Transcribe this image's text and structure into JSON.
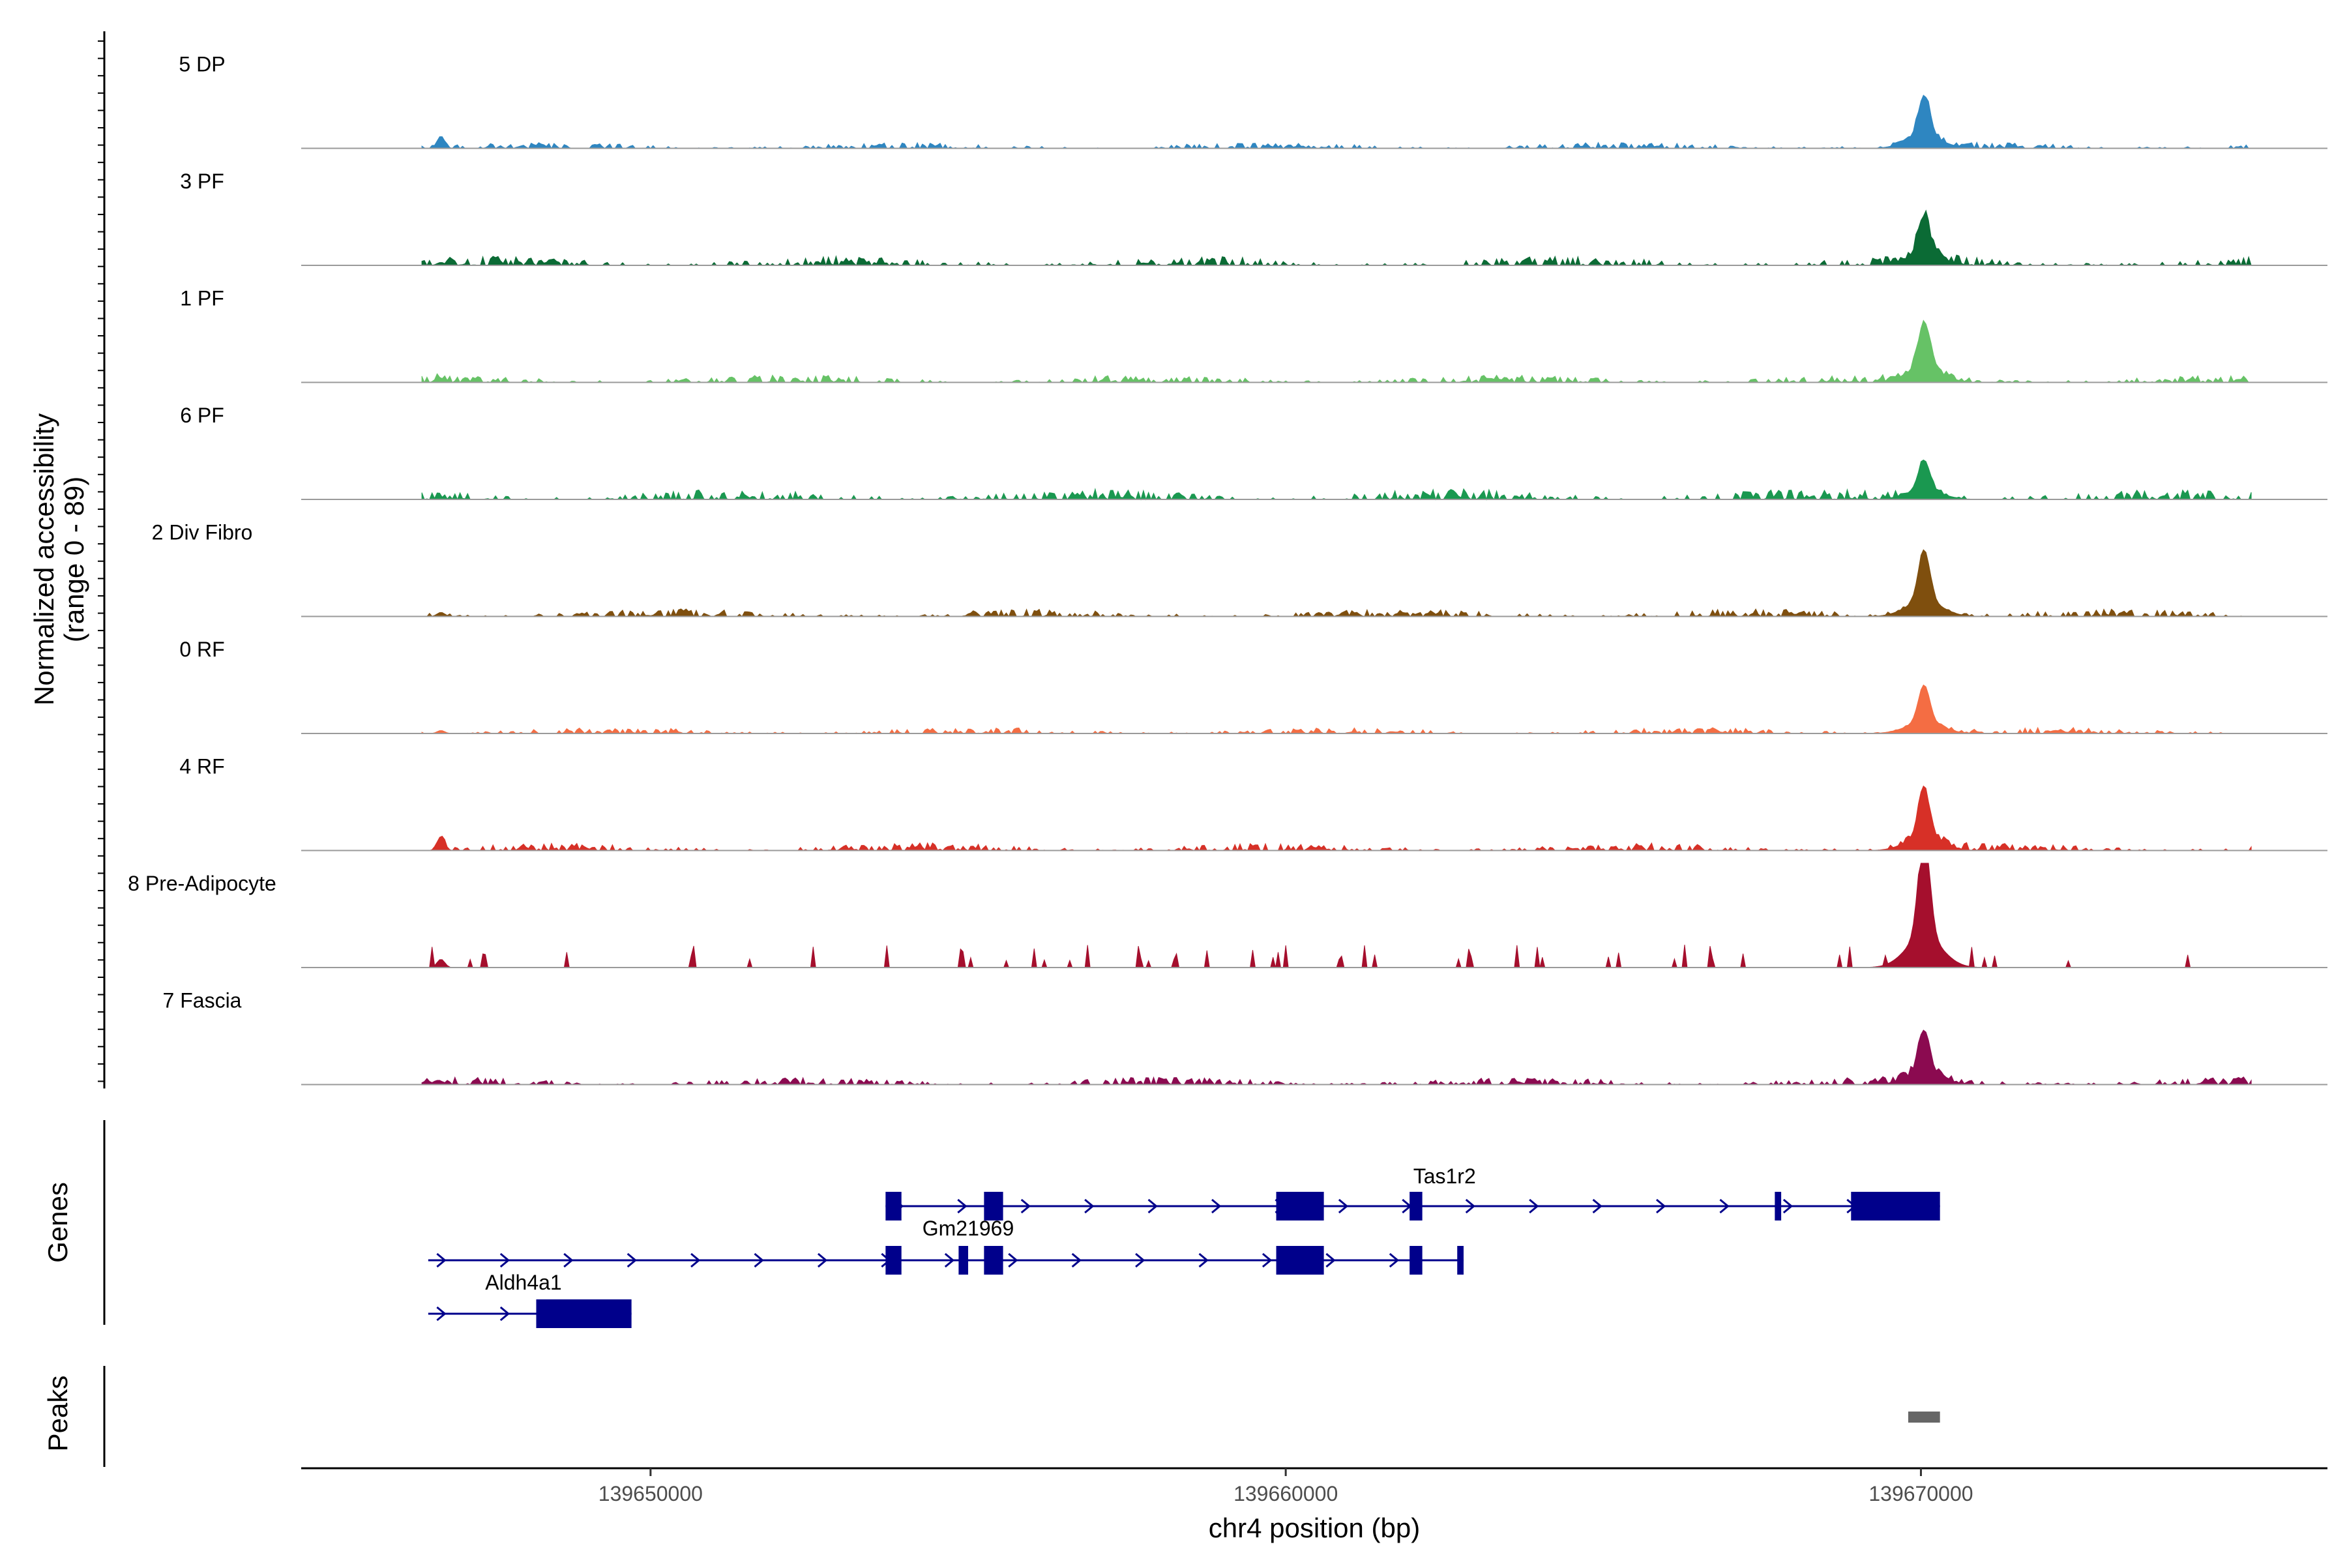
{
  "chart_data": {
    "type": "area",
    "title": "",
    "y_axis_title_line1": "Normalized accessibility",
    "y_axis_title_line2": "(range 0 - 89)",
    "ylim": [
      0,
      89
    ],
    "x_axis_title": "chr4 position (bp)",
    "xlim": [
      139644500,
      139676400
    ],
    "x_ticks": [
      139650000,
      139660000,
      139670000
    ],
    "x_tick_labels": [
      "139650000",
      "139660000",
      "139670000"
    ],
    "peak_center": 139670050,
    "tracks": [
      {
        "name": "5 DP",
        "color": "#2E86C1",
        "peak": 35,
        "noise": 4
      },
      {
        "name": "3 PF",
        "color": "#0B6B35",
        "peak": 32,
        "noise": 6
      },
      {
        "name": "1 PF",
        "color": "#66C266",
        "peak": 40,
        "noise": 5
      },
      {
        "name": "6 PF",
        "color": "#1A9850",
        "peak": 26,
        "noise": 7
      },
      {
        "name": "2 Div Fibro",
        "color": "#7F4F0E",
        "peak": 44,
        "noise": 5
      },
      {
        "name": "0 RF",
        "color": "#F46D43",
        "peak": 32,
        "noise": 4
      },
      {
        "name": "4 RF",
        "color": "#D73027",
        "peak": 40,
        "noise": 5
      },
      {
        "name": "8 Pre-Adipocyte",
        "color": "#A50F2D",
        "peak": 89,
        "noise": 14
      },
      {
        "name": "7 Fascia",
        "color": "#8B0A50",
        "peak": 34,
        "noise": 5
      }
    ],
    "genes_panel_label": "Genes",
    "peaks_panel_label": "Peaks",
    "gene_color": "#00008B",
    "peak_color": "#666666",
    "genes": [
      {
        "name": "Tas1r2",
        "start": 139653700,
        "end": 139670300,
        "row": 0,
        "exons": [
          [
            139653700,
            139653950
          ],
          [
            139655250,
            139655550
          ],
          [
            139659850,
            139660600
          ],
          [
            139661950,
            139662150
          ],
          [
            139667700,
            139667800
          ],
          [
            139668900,
            139670300
          ]
        ]
      },
      {
        "name": "Gm21969",
        "start": 139646500,
        "end": 139662800,
        "row": 1,
        "exons": [
          [
            139653700,
            139653950
          ],
          [
            139654850,
            139655000
          ],
          [
            139655250,
            139655550
          ],
          [
            139659850,
            139660600
          ],
          [
            139661950,
            139662150
          ],
          [
            139662700,
            139662800
          ]
        ]
      },
      {
        "name": "Aldh4a1",
        "start": 139646500,
        "end": 139649700,
        "row": 2,
        "exons": [
          [
            139648200,
            139649700
          ]
        ]
      }
    ],
    "peaks": [
      [
        139669800,
        139670300
      ]
    ]
  }
}
